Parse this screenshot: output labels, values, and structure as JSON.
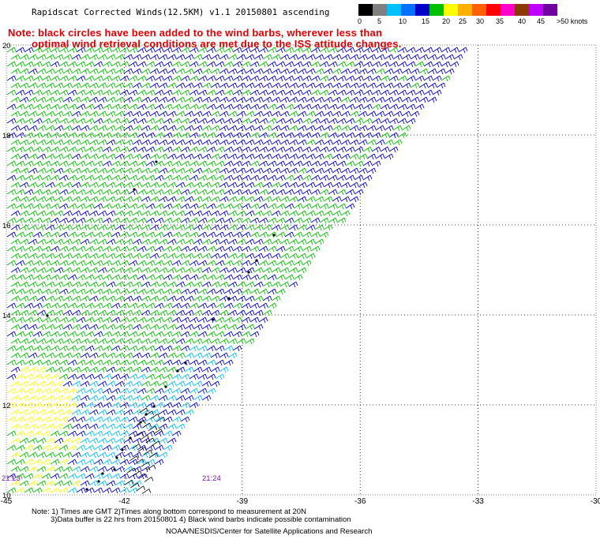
{
  "title": "Rapidscat Corrected Winds(12.5KM) v1.1 20150801 ascending",
  "note_line1": "Note: black circles have been added to the wind barbs, wherever less than",
  "note_line2": "optimal wind retrieval conditions are met due to the ISS attitude changes.",
  "legend": {
    "colors": [
      "#000000",
      "#7f7f7f",
      "#00c0ff",
      "#0070ff",
      "#0000c8",
      "#00c000",
      "#ffff00",
      "#ffb000",
      "#ff6000",
      "#ff0000",
      "#ff00c8",
      "#8a3a00",
      "#c000ff",
      "#7000a0"
    ],
    "labels": [
      "0",
      "5",
      "10",
      "15",
      "20",
      "25",
      "30",
      "35",
      "40",
      "45",
      ">50 knots"
    ]
  },
  "axes": {
    "lon_labels": [
      "-45",
      "-42",
      "-39",
      "-36",
      "-33",
      "-30"
    ],
    "lat_labels": [
      "20",
      "18",
      "16",
      "14",
      "12",
      "10"
    ]
  },
  "pass_times": {
    "left": "21:23",
    "right": "21:24"
  },
  "footer": {
    "line1": "Note: 1) Times are GMT 2)Times along bottom correspond to measurement at 20N",
    "line2": "3)Data buffer is 22 hrs from 20150801 4) Black wind barbs indicate possible contamination",
    "credit": "NOAA/NESDIS/Center for Satellite Applications and Research"
  },
  "wind_colors": {
    "dark_blue": "#0000c8",
    "green": "#00c000",
    "cyan": "#00c0ff",
    "yellow": "#ffff00",
    "contamination": "#000000"
  }
}
